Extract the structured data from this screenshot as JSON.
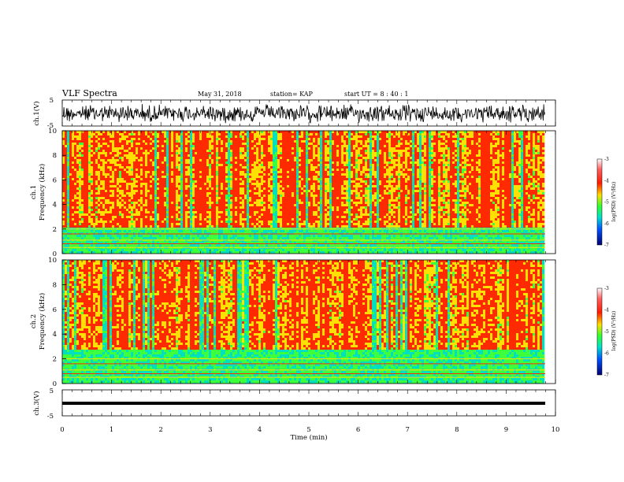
{
  "header": {
    "title": "VLF Spectra",
    "date": "May 31, 2018",
    "station": "station= KAP",
    "start": "start  UT  =   8 : 40 : 1"
  },
  "chart_data": [
    {
      "type": "line",
      "name": "ch1-waveform",
      "ylabel": "ch.1(V)",
      "ylim": [
        -5,
        5
      ],
      "yticks": [
        "5",
        "-5"
      ],
      "xlim": [
        0,
        10
      ],
      "color": "#000000"
    },
    {
      "type": "heatmap",
      "name": "ch1-spectrogram",
      "ylabel_line1": "ch.1",
      "ylabel_line2": "Frequency (kHz)",
      "ylim": [
        0,
        10
      ],
      "yticks": [
        "0",
        "2",
        "4",
        "6",
        "8",
        "10"
      ],
      "xlim": [
        0,
        10
      ],
      "colorbar": {
        "label": "log(PSD) (V²/Hz)",
        "ticks": [
          "-3",
          "-4",
          "-5",
          "-6",
          "-7"
        ],
        "range": [
          -7,
          -3
        ]
      }
    },
    {
      "type": "heatmap",
      "name": "ch2-spectrogram",
      "ylabel_line1": "ch.2",
      "ylabel_line2": "Frequency (kHz)",
      "ylim": [
        0,
        10
      ],
      "yticks": [
        "0",
        "2",
        "4",
        "6",
        "8",
        "10"
      ],
      "xlim": [
        0,
        10
      ],
      "colorbar": {
        "label": "log(PSD) (V²/Hz)",
        "ticks": [
          "-3",
          "-4",
          "-5",
          "-6",
          "-7"
        ],
        "range": [
          -7,
          -3
        ]
      }
    },
    {
      "type": "line",
      "name": "ch3-waveform",
      "ylabel": "ch.3(V)",
      "ylim": [
        -5,
        5
      ],
      "yticks": [
        "5",
        "-5"
      ],
      "xlim": [
        0,
        10
      ],
      "value": -1,
      "color": "#000000"
    }
  ],
  "xaxis": {
    "label": "Time (min)",
    "ticks": [
      "0",
      "1",
      "2",
      "3",
      "4",
      "5",
      "6",
      "7",
      "8",
      "9",
      "10"
    ]
  },
  "colors": {
    "hot": "#ff2a00",
    "warm": "#ffe000",
    "mid": "#3dff3d",
    "cool": "#00e0c0",
    "cold": "#0030ff"
  }
}
